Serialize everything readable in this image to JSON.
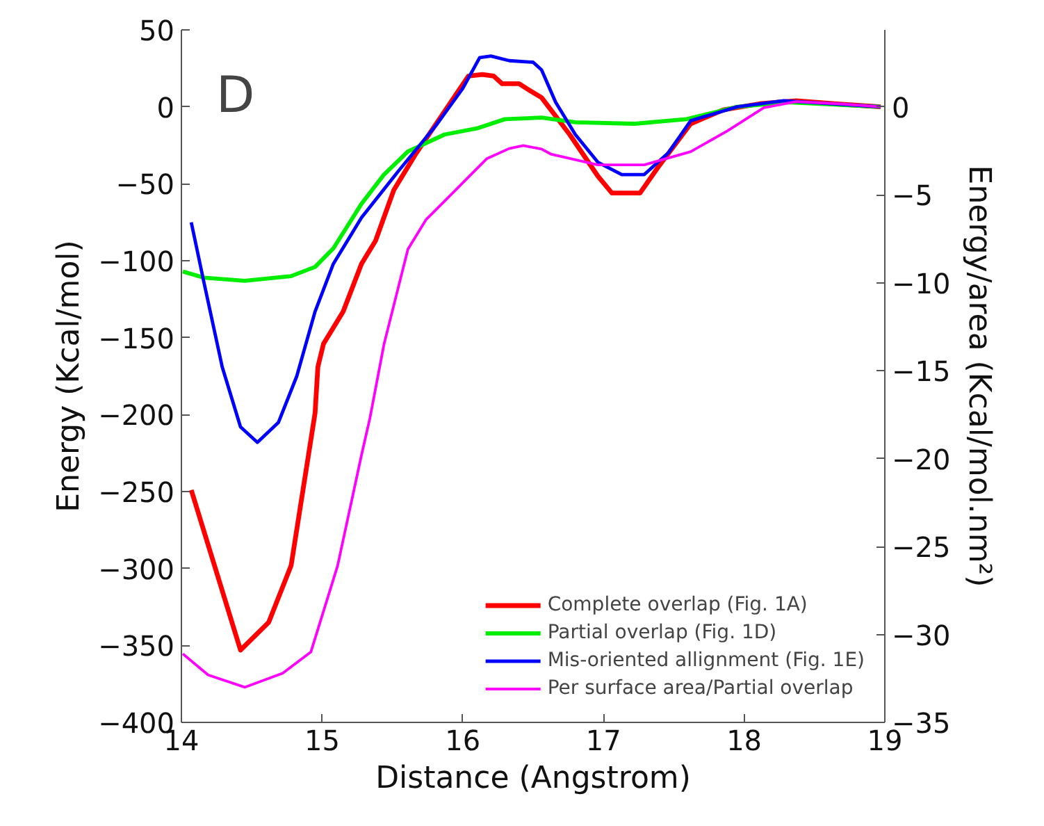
{
  "chart_data": {
    "type": "line",
    "annotations": [
      "D"
    ],
    "xlabel": "Distance (Angstrom)",
    "ylabel": "Energy (Kcal/mol)",
    "y2label": "Energy/area (Kcal/mol.nm²)",
    "xlim": [
      14,
      19
    ],
    "xticks": [
      14,
      15,
      16,
      17,
      18,
      19
    ],
    "ylim": [
      -400,
      50
    ],
    "yticks": [
      -400,
      -350,
      -300,
      -250,
      -200,
      -150,
      -100,
      -50,
      0,
      50
    ],
    "y2lim": [
      -35,
      4.375
    ],
    "y2ticks": [
      -35,
      -30,
      -25,
      -20,
      -15,
      -10,
      -5,
      0
    ],
    "grid": false,
    "legend": "bottom right",
    "line_style": "solid",
    "marker": "none",
    "series": [
      {
        "name": "Complete overlap (Fig. 1A)",
        "color": "#ff0000",
        "x": [
          14.07,
          14.42,
          14.62,
          14.78,
          14.95,
          14.97,
          15.01,
          15.15,
          15.28,
          15.38,
          15.51,
          15.67,
          15.87,
          16.04,
          16.14,
          16.22,
          16.28,
          16.4,
          16.47,
          16.56,
          16.76,
          16.96,
          17.06,
          17.26,
          17.39,
          17.62,
          17.85,
          18.11,
          18.37,
          18.64,
          18.97
        ],
        "values": [
          -249,
          -353,
          -335,
          -298,
          -199,
          -169,
          -154,
          -133,
          -102,
          -87,
          -54,
          -30,
          -3,
          20,
          21,
          20,
          15,
          15,
          11,
          6,
          -18,
          -45,
          -56,
          -56,
          -39,
          -11,
          -2,
          2,
          4,
          2,
          0
        ]
      },
      {
        "name": "Partial overlap (Fig. 1D)",
        "color": "#00ee00",
        "x": [
          14.01,
          14.16,
          14.45,
          14.78,
          14.95,
          15.08,
          15.28,
          15.44,
          15.61,
          15.87,
          16.1,
          16.3,
          16.56,
          16.8,
          17.22,
          17.59,
          17.95,
          18.31,
          18.97
        ],
        "values": [
          -107,
          -111,
          -113,
          -110,
          -104,
          -92,
          -63,
          -44,
          -29,
          -18,
          -14,
          -8,
          -7,
          -10,
          -11,
          -8,
          0,
          3,
          0
        ]
      },
      {
        "name": "Mis-oriented allignment (Fig. 1E)",
        "color": "#0000ff",
        "x": [
          14.07,
          14.16,
          14.29,
          14.42,
          14.54,
          14.69,
          14.82,
          14.95,
          15.08,
          15.28,
          15.54,
          15.81,
          16.0,
          16.12,
          16.2,
          16.33,
          16.5,
          16.56,
          16.66,
          16.8,
          16.96,
          17.13,
          17.29,
          17.46,
          17.62,
          17.95,
          18.28,
          18.97
        ],
        "values": [
          -75,
          -114,
          -169,
          -208,
          -218,
          -205,
          -175,
          -133,
          -102,
          -72,
          -42,
          -12,
          12,
          32,
          33,
          30,
          29,
          24,
          3,
          -18,
          -36,
          -44,
          -44,
          -30,
          -9,
          0,
          4,
          0
        ]
      },
      {
        "name": "Per surface area/Partial overlap",
        "color": "#ff00ff",
        "axis": "y2",
        "x": [
          14.01,
          14.19,
          14.45,
          14.72,
          14.92,
          15.11,
          15.28,
          15.34,
          15.44,
          15.61,
          15.74,
          15.94,
          16.17,
          16.33,
          16.43,
          16.56,
          16.63,
          16.96,
          17.29,
          17.62,
          17.88,
          18.14,
          18.37,
          18.7,
          18.97
        ],
        "values": [
          -31.1,
          -32.3,
          -33.0,
          -32.2,
          -31.0,
          -26.1,
          -19.8,
          -17.7,
          -13.5,
          -8.1,
          -6.4,
          -4.8,
          -2.95,
          -2.37,
          -2.2,
          -2.4,
          -2.7,
          -3.3,
          -3.3,
          -2.55,
          -1.37,
          -0.05,
          0.3,
          0.16,
          0
        ]
      }
    ]
  }
}
